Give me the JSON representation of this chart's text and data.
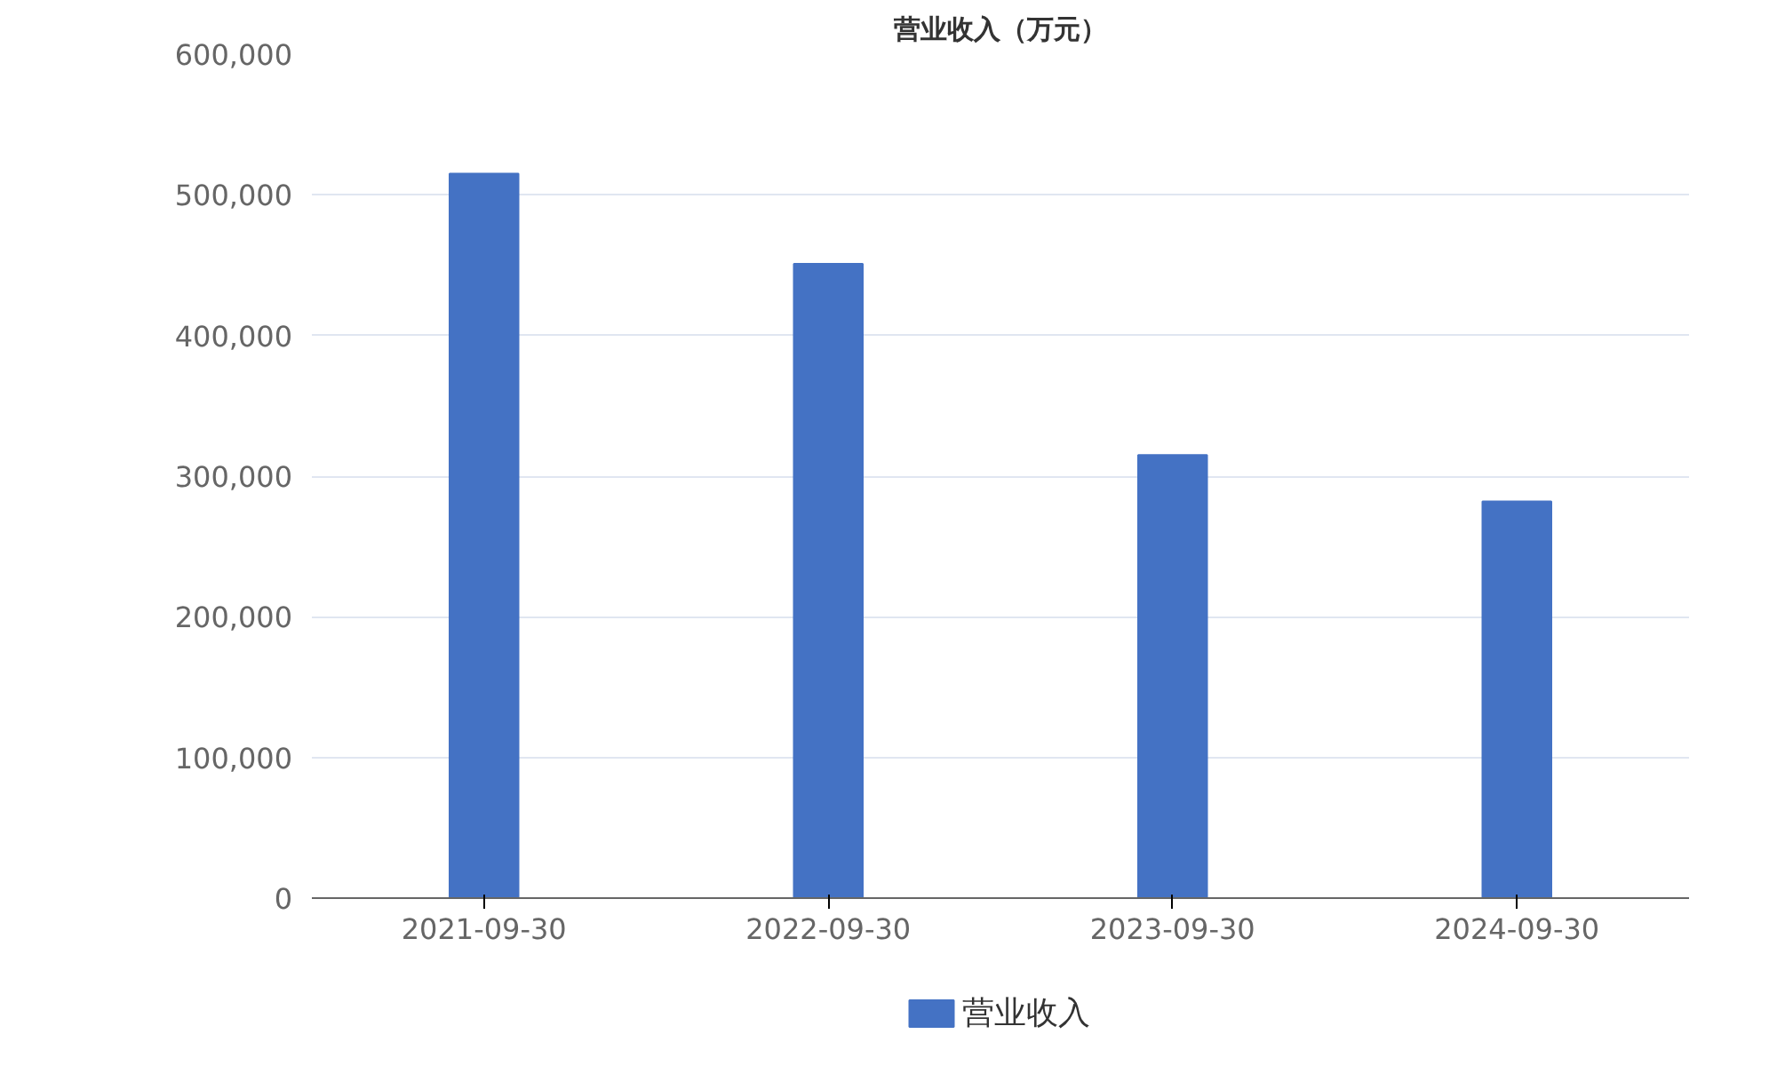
{
  "chart_data": {
    "type": "bar",
    "title": "营业收入（万元）",
    "categories": [
      "2021-09-30",
      "2022-09-30",
      "2023-09-30",
      "2024-09-30"
    ],
    "series": [
      {
        "name": "营业收入",
        "color": "#4472c4",
        "values": [
          515000,
          451000,
          315000,
          282000
        ]
      }
    ],
    "ylim": [
      0,
      600000
    ],
    "yticks": [
      0,
      {
        "value": 100000,
        "label": "100,000"
      },
      {
        "value": 200000,
        "label": "200,000"
      },
      {
        "value": 300000,
        "label": "300,000"
      },
      {
        "value": 400000,
        "label": "400,000"
      },
      {
        "value": 500000,
        "label": "500,000"
      },
      {
        "value": 600000,
        "label": "600,000"
      }
    ],
    "grid": "y",
    "legend": "bottom"
  }
}
